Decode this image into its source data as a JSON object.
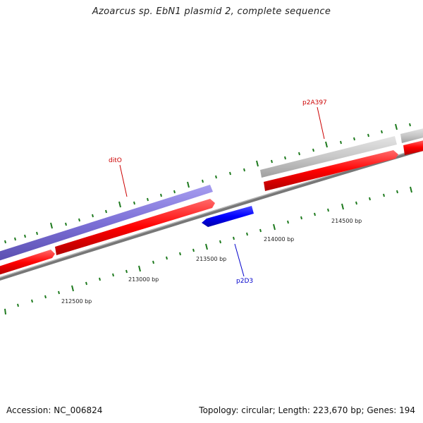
{
  "title": "Azoarcus sp. EbN1 plasmid 2, complete sequence",
  "footer": {
    "accession": "Accession: NC_006824",
    "summary": "Topology: circular; Length: 223,670 bp; Genes: 194"
  },
  "scale_labels": [
    "212500 bp",
    "213000 bp",
    "213500 bp",
    "214000 bp",
    "214500 bp"
  ],
  "genes": {
    "dito": {
      "label": "ditO",
      "color": "#cc0000"
    },
    "p2a397": {
      "label": "p2A397",
      "color": "#cc0000"
    },
    "p2d3": {
      "label": "p2D3",
      "color": "#0000cc"
    }
  },
  "colors": {
    "cds_forward": "#ff0000",
    "cds_reverse": "#0000ff",
    "cog_category": "#7b6fd6",
    "gray_feature": "#c8c8c8",
    "backbone": "#8a8a8a",
    "tick": "#1e7a1e"
  }
}
